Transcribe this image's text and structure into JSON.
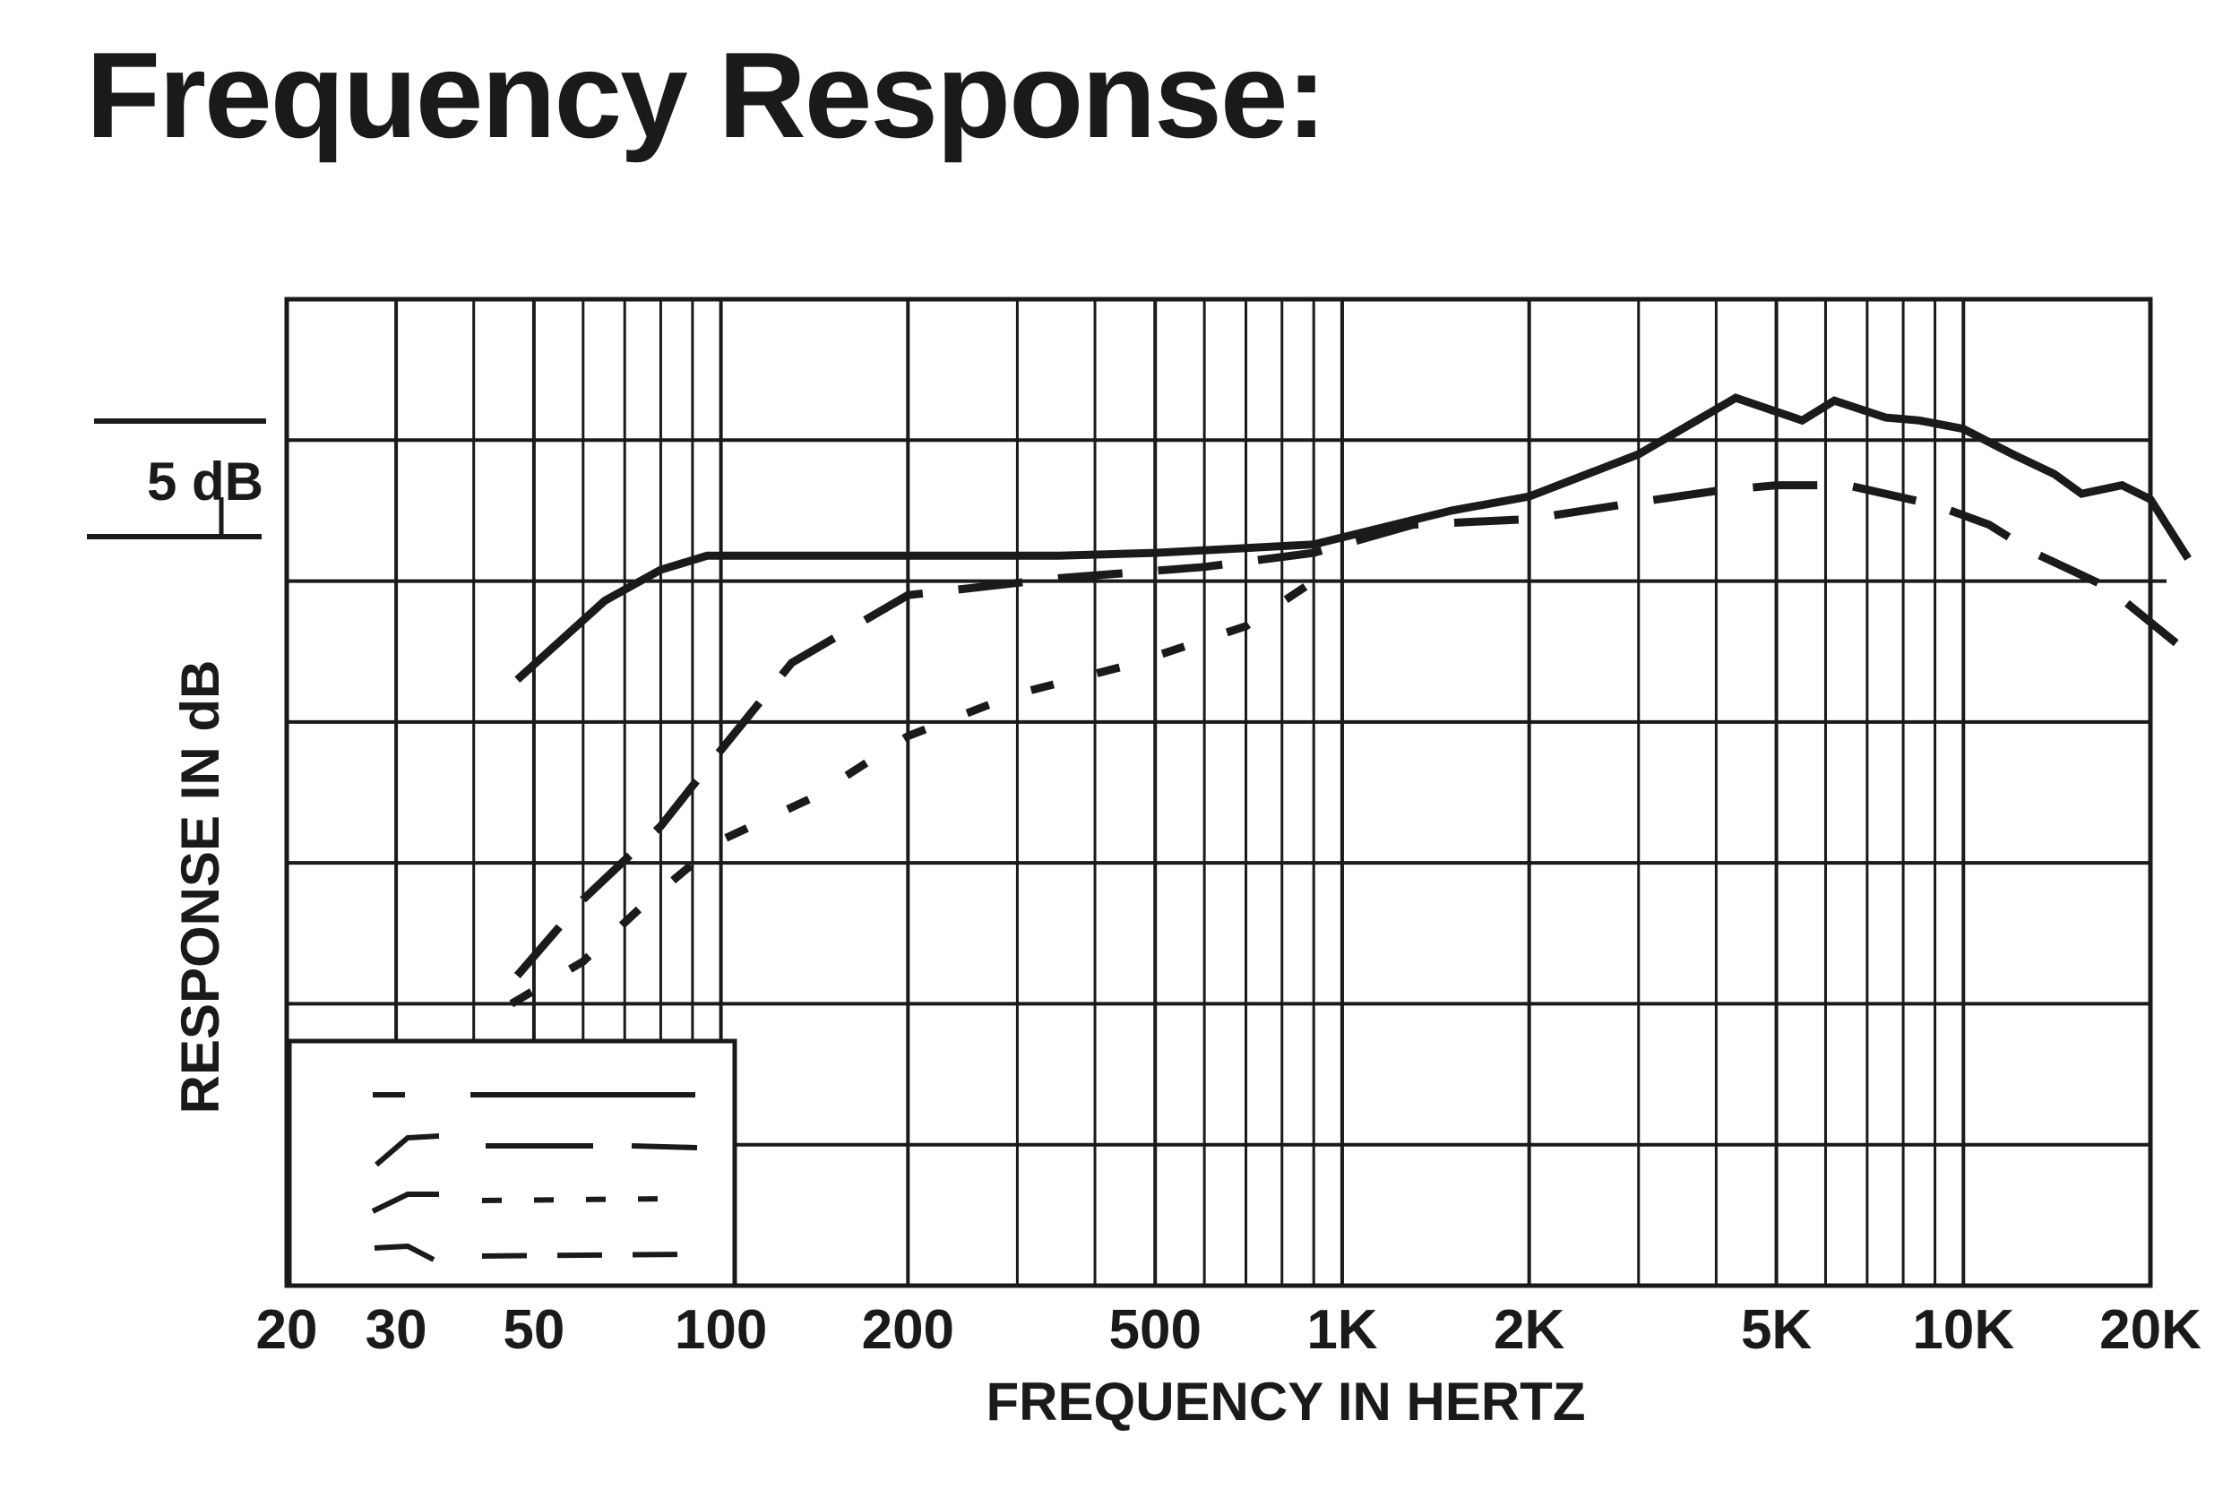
{
  "title": "Frequency Response:",
  "chart_data": {
    "type": "line",
    "title": "Frequency Response:",
    "xlabel": "FREQUENCY IN HERTZ",
    "ylabel": "RESPONSE IN dB",
    "scale_label": "5 dB",
    "x_scale": "log",
    "xlim": [
      20,
      20000
    ],
    "ylim": [
      -25,
      10
    ],
    "y_units": "dB (relative)",
    "grid": true,
    "legend": "bottom-left",
    "x_ticks": [
      {
        "value": 20,
        "label": "20"
      },
      {
        "value": 30,
        "label": "30"
      },
      {
        "value": 50,
        "label": "50"
      },
      {
        "value": 100,
        "label": "100"
      },
      {
        "value": 200,
        "label": "200"
      },
      {
        "value": 500,
        "label": "500"
      },
      {
        "value": 1000,
        "label": "1K"
      },
      {
        "value": 2000,
        "label": "2K"
      },
      {
        "value": 5000,
        "label": "5K"
      },
      {
        "value": 10000,
        "label": "10K"
      },
      {
        "value": 20000,
        "label": "20K"
      }
    ],
    "series": [
      {
        "style": "solid",
        "points": [
          [
            47,
            -3.5
          ],
          [
            65,
            -0.7
          ],
          [
            80,
            0.4
          ],
          [
            95,
            0.9
          ],
          [
            200,
            0.9
          ],
          [
            350,
            0.9
          ],
          [
            500,
            1.0
          ],
          [
            900,
            1.3
          ],
          [
            1500,
            2.5
          ],
          [
            2000,
            3.0
          ],
          [
            3000,
            4.5
          ],
          [
            4300,
            6.5
          ],
          [
            5500,
            5.7
          ],
          [
            6200,
            6.4
          ],
          [
            7500,
            5.8
          ],
          [
            8500,
            5.7
          ],
          [
            10000,
            5.4
          ],
          [
            12000,
            4.5
          ],
          [
            14000,
            3.8
          ],
          [
            15500,
            3.1
          ],
          [
            18000,
            3.4
          ],
          [
            20000,
            2.9
          ],
          [
            23000,
            0.8
          ]
        ]
      },
      {
        "style": "long-dash",
        "points": [
          [
            47,
            -14.0
          ],
          [
            60,
            -11.3
          ],
          [
            80,
            -8.7
          ],
          [
            100,
            -6.0
          ],
          [
            130,
            -2.9
          ],
          [
            200,
            -0.5
          ],
          [
            350,
            0.1
          ],
          [
            600,
            0.5
          ],
          [
            900,
            1.0
          ],
          [
            1300,
            2.0
          ],
          [
            2000,
            2.2
          ],
          [
            3000,
            2.8
          ],
          [
            4000,
            3.2
          ],
          [
            5000,
            3.4
          ],
          [
            6500,
            3.4
          ],
          [
            9000,
            2.7
          ],
          [
            11000,
            2.0
          ],
          [
            13000,
            1.0
          ],
          [
            17000,
            -0.2
          ],
          [
            22000,
            -2.2
          ]
        ]
      },
      {
        "style": "short-dash",
        "points": [
          [
            46,
            -15.0
          ],
          [
            60,
            -13.5
          ],
          [
            75,
            -11.5
          ],
          [
            100,
            -9.2
          ],
          [
            140,
            -7.7
          ],
          [
            200,
            -5.5
          ],
          [
            300,
            -4.0
          ],
          [
            450,
            -3.0
          ],
          [
            700,
            -1.6
          ],
          [
            900,
            0.0
          ]
        ]
      }
    ]
  }
}
